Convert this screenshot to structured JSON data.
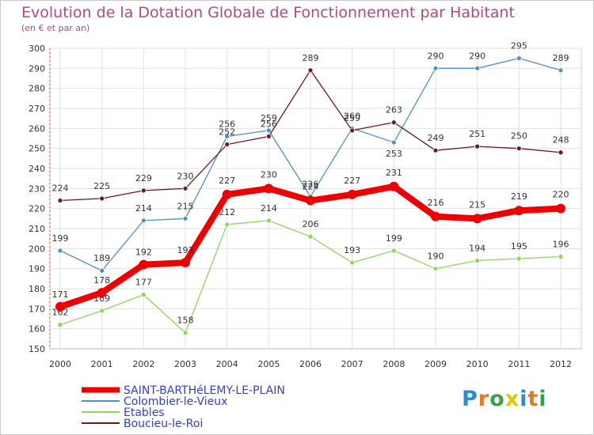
{
  "chart_data": {
    "type": "line",
    "title": "Evolution de la Dotation Globale de Fonctionnement par Habitant",
    "subtitle": "(en € et par an)",
    "xlabel": "",
    "ylabel": "",
    "ylim": [
      150,
      300
    ],
    "ytick_step": 10,
    "grid": true,
    "legend_position": "bottom-left",
    "categories": [
      "2000",
      "2001",
      "2002",
      "2003",
      "2004",
      "2005",
      "2006",
      "2007",
      "2008",
      "2009",
      "2010",
      "2011",
      "2012"
    ],
    "series": [
      {
        "name": "Colombier-le-Vieux",
        "color": "#4f8fc5",
        "values": [
          199,
          189,
          214,
          215,
          256,
          259,
          226,
          260,
          253,
          290,
          290,
          295,
          289
        ],
        "label_offsets": [
          -12,
          -12,
          -12,
          -12,
          -12,
          -12,
          -12,
          -12,
          12,
          -12,
          -12,
          -12,
          -12
        ]
      },
      {
        "name": "Etables",
        "color": "#8fd45c",
        "values": [
          162,
          169,
          177,
          158,
          212,
          214,
          206,
          193,
          199,
          190,
          194,
          195,
          196
        ],
        "label_offsets": [
          -12,
          -12,
          -12,
          -12,
          -12,
          -12,
          -12,
          -12,
          -12,
          -12,
          -12,
          -12,
          -12
        ]
      },
      {
        "name": "Boucieu-le-Roi",
        "color": "#6b1a1a",
        "values": [
          224,
          225,
          229,
          230,
          252,
          256,
          289,
          259,
          263,
          249,
          251,
          250,
          248
        ],
        "label_offsets": [
          -12,
          -12,
          -12,
          -12,
          -12,
          -12,
          -12,
          -12,
          -12,
          -12,
          -12,
          -12,
          -12
        ]
      },
      {
        "name": "SAINT-BARTHéLEMY-LE-PLAIN",
        "color": "#ee0000",
        "values": [
          171,
          178,
          192,
          193,
          227,
          230,
          224,
          227,
          231,
          216,
          215,
          219,
          220
        ],
        "label_offsets": [
          -12,
          -12,
          -12,
          -12,
          -14,
          -14,
          -14,
          -14,
          -14,
          -14,
          -14,
          -14,
          -14
        ]
      }
    ]
  },
  "legend": [
    {
      "name": "SAINT-BARTHéLEMY-LE-PLAIN",
      "color": "#ee0000",
      "style": "thick"
    },
    {
      "name": "Colombier-le-Vieux",
      "color": "#4f8fc5",
      "style": "thin"
    },
    {
      "name": "Etables",
      "color": "#8fd45c",
      "style": "thin"
    },
    {
      "name": "Boucieu-le-Roi",
      "color": "#6b1a1a",
      "style": "thin"
    }
  ],
  "logo": {
    "letters": [
      "P",
      "r",
      "o",
      "x",
      "i",
      "t",
      "i"
    ],
    "colors": [
      "#2f8bcf",
      "#e87722",
      "#3aa14a",
      "#e8c200",
      "#2f8bcf",
      "#e87722",
      "#3aa14a"
    ]
  }
}
